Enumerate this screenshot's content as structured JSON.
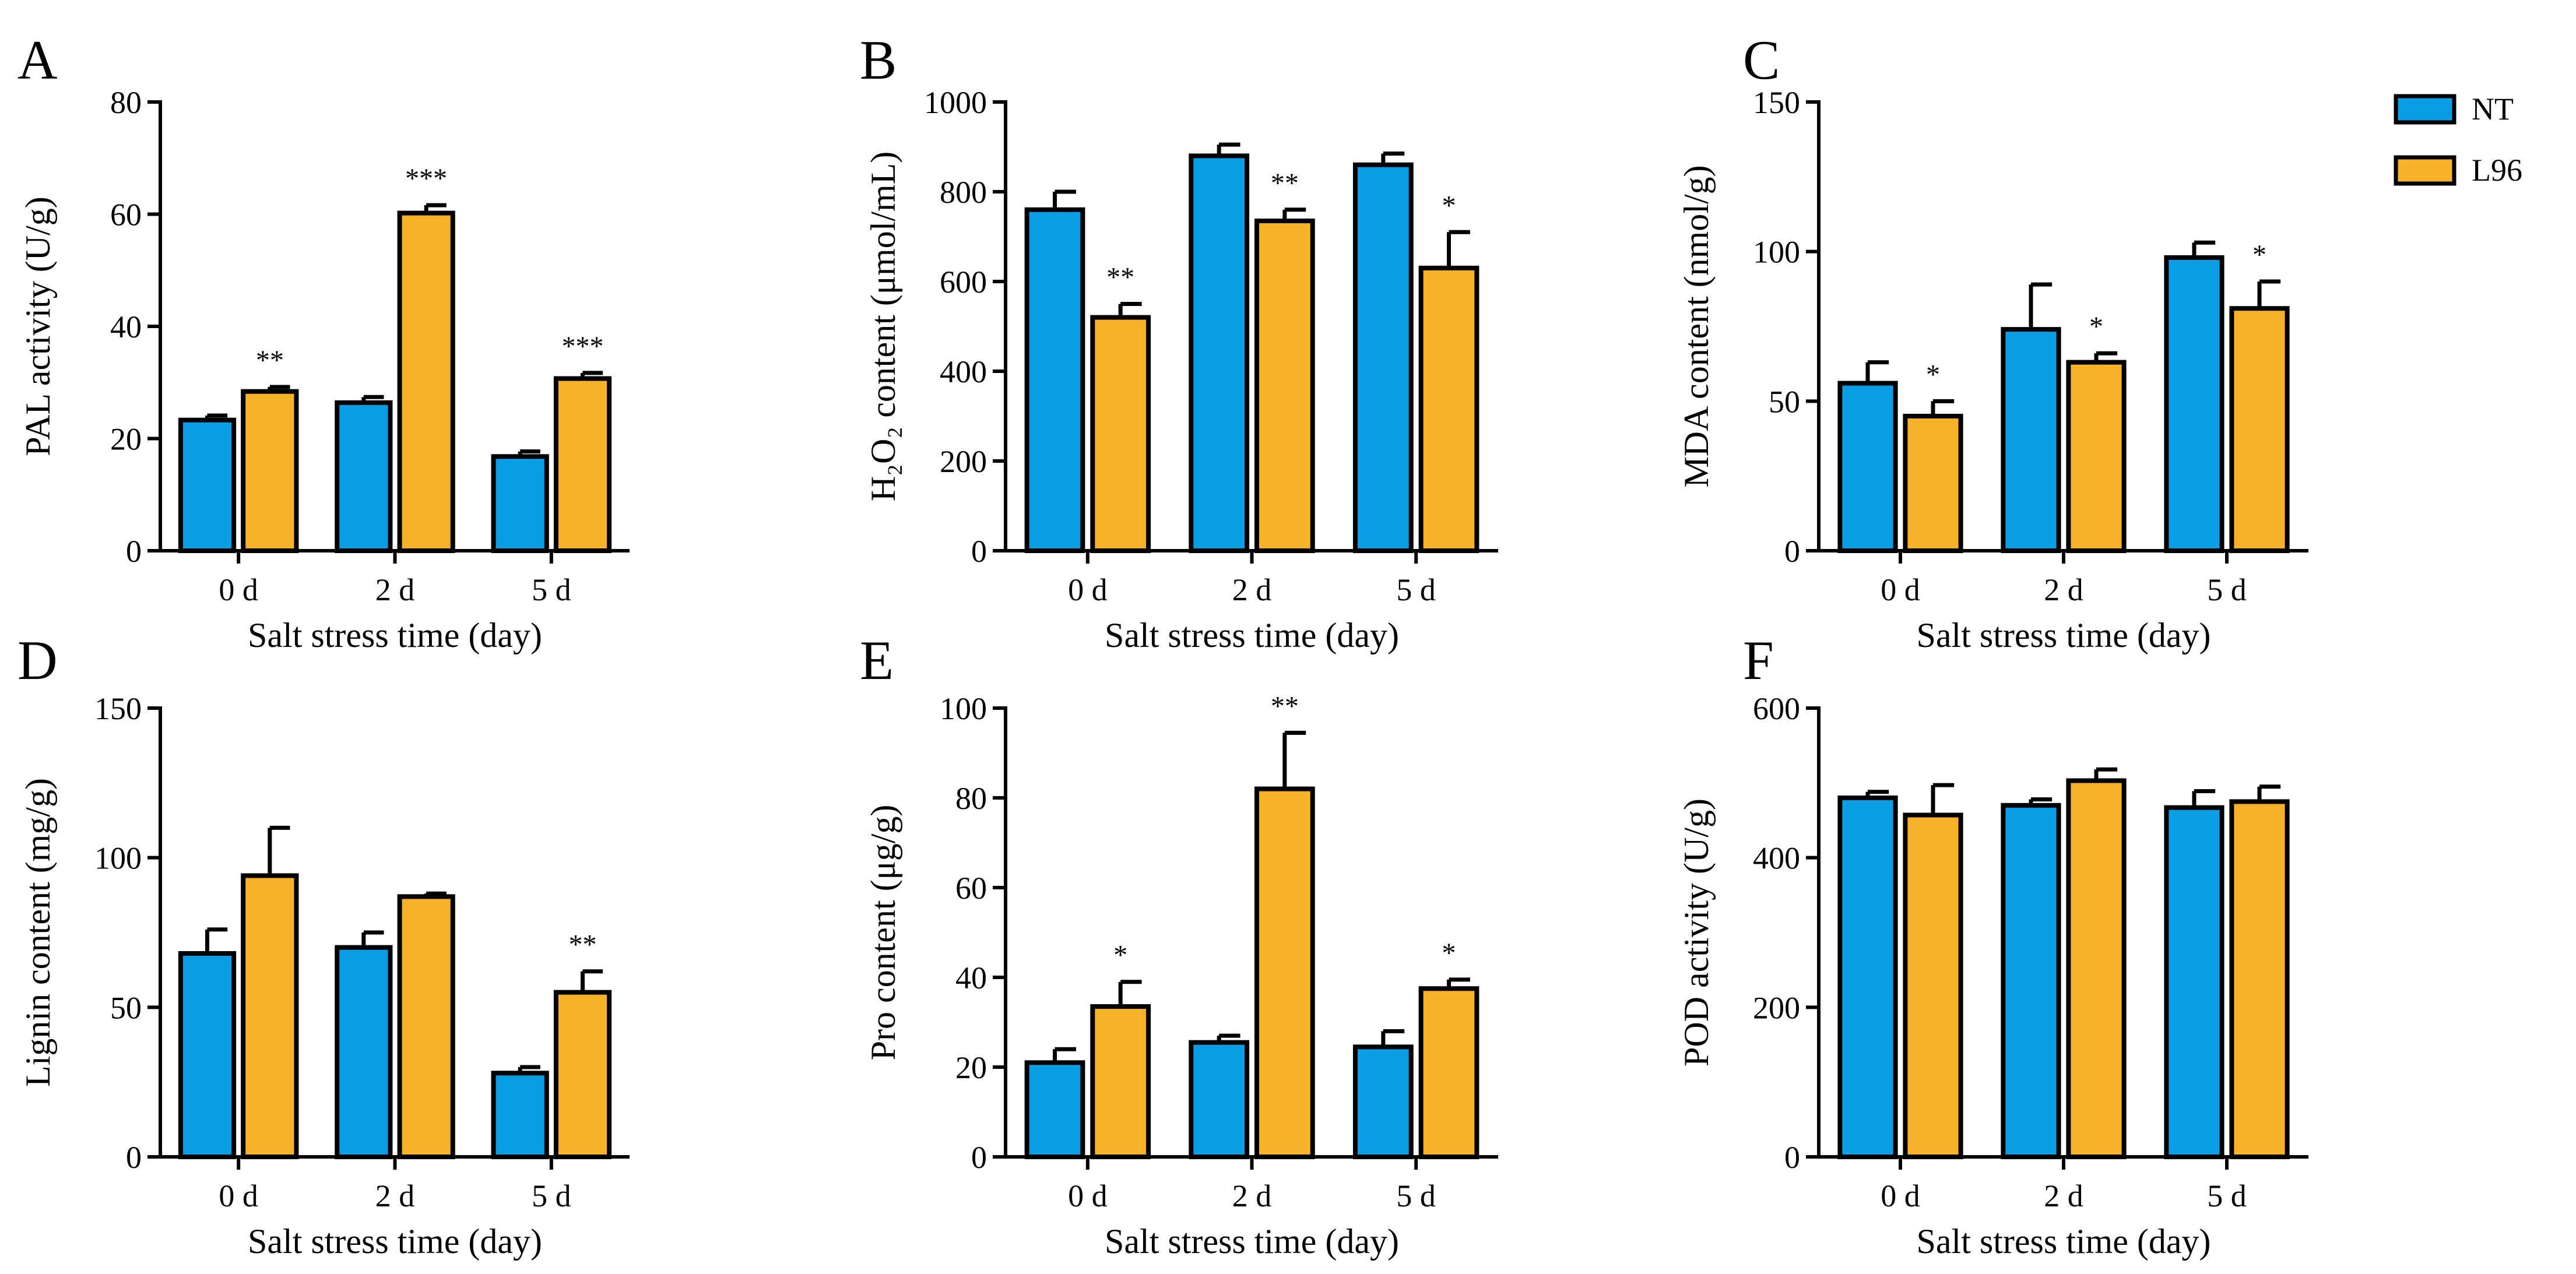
{
  "legend": [
    {
      "name": "NT",
      "color": "#0a9ce5"
    },
    {
      "name": "L96",
      "color": "#f8b229"
    }
  ],
  "colors": {
    "axis": "#000000",
    "bar_outline": "#000000"
  },
  "chart_data": [
    {
      "panel": "A",
      "type": "bar",
      "title": "",
      "xlabel": "Salt stress time (day)",
      "ylabel": "PAL activity (U/g)",
      "categories": [
        "0 d",
        "2 d",
        "5 d"
      ],
      "ylim": [
        0,
        80
      ],
      "yticks": [
        0,
        20,
        40,
        60,
        80
      ],
      "ytick_labels": [
        "0",
        "20",
        "40",
        "60",
        "80"
      ],
      "series": [
        {
          "name": "NT",
          "values": [
            23.3,
            26.4,
            16.8
          ],
          "errors": [
            0.8,
            1.0,
            0.9
          ]
        },
        {
          "name": "L96",
          "values": [
            28.4,
            60.2,
            30.7
          ],
          "errors": [
            0.8,
            1.4,
            1.0
          ]
        }
      ],
      "significance": [
        "**",
        "***",
        "***"
      ]
    },
    {
      "panel": "B",
      "type": "bar",
      "title": "",
      "xlabel": "Salt stress time (day)",
      "ylabel": "H₂O₂ content (μmol/mL)",
      "categories": [
        "0 d",
        "2 d",
        "5 d"
      ],
      "ylim": [
        0,
        1000
      ],
      "yticks": [
        0,
        200,
        400,
        600,
        800,
        1000
      ],
      "ytick_labels": [
        "0",
        "200",
        "400",
        "600",
        "800",
        "1000"
      ],
      "series": [
        {
          "name": "NT",
          "values": [
            760,
            880,
            860
          ],
          "errors": [
            40,
            25,
            25
          ]
        },
        {
          "name": "L96",
          "values": [
            520,
            735,
            630
          ],
          "errors": [
            30,
            25,
            80
          ]
        }
      ],
      "significance": [
        "**",
        "**",
        "*"
      ]
    },
    {
      "panel": "C",
      "type": "bar",
      "title": "",
      "xlabel": "Salt stress time (day)",
      "ylabel": "MDA content (nmol/g)",
      "categories": [
        "0 d",
        "2 d",
        "5 d"
      ],
      "ylim": [
        0,
        150
      ],
      "yticks": [
        0,
        50,
        100,
        150
      ],
      "ytick_labels": [
        "0",
        "50",
        "100",
        "150"
      ],
      "series": [
        {
          "name": "NT",
          "values": [
            56,
            74,
            98
          ],
          "errors": [
            7,
            15,
            5
          ]
        },
        {
          "name": "L96",
          "values": [
            45,
            63,
            81
          ],
          "errors": [
            5,
            3,
            9
          ]
        }
      ],
      "significance": [
        "*",
        "*",
        "*"
      ]
    },
    {
      "panel": "D",
      "type": "bar",
      "title": "",
      "xlabel": "Salt stress time (day)",
      "ylabel": "Lignin content (mg/g)",
      "categories": [
        "0 d",
        "2 d",
        "5 d"
      ],
      "ylim": [
        0,
        150
      ],
      "yticks": [
        0,
        50,
        100,
        150
      ],
      "ytick_labels": [
        "0",
        "50",
        "100",
        "150"
      ],
      "series": [
        {
          "name": "NT",
          "values": [
            68,
            70,
            28
          ],
          "errors": [
            8,
            5,
            2
          ]
        },
        {
          "name": "L96",
          "values": [
            94,
            87,
            55
          ],
          "errors": [
            16,
            1,
            7
          ]
        }
      ],
      "significance": [
        "",
        "",
        "**"
      ]
    },
    {
      "panel": "E",
      "type": "bar",
      "title": "",
      "xlabel": "Salt stress time (day)",
      "ylabel": "Pro content (μg/g)",
      "categories": [
        "0 d",
        "2 d",
        "5 d"
      ],
      "ylim": [
        0,
        100
      ],
      "yticks": [
        0,
        20,
        40,
        60,
        80,
        100
      ],
      "ytick_labels": [
        "0",
        "20",
        "40",
        "60",
        "80",
        "100"
      ],
      "series": [
        {
          "name": "NT",
          "values": [
            21,
            25.5,
            24.5
          ],
          "errors": [
            3,
            1.5,
            3.5
          ]
        },
        {
          "name": "L96",
          "values": [
            33.5,
            82,
            37.5
          ],
          "errors": [
            5.5,
            12.5,
            2
          ]
        }
      ],
      "significance": [
        "*",
        "**",
        "*"
      ]
    },
    {
      "panel": "F",
      "type": "bar",
      "title": "",
      "xlabel": "Salt stress time (day)",
      "ylabel": "POD activity (U/g)",
      "categories": [
        "0 d",
        "2 d",
        "5 d"
      ],
      "ylim": [
        0,
        600
      ],
      "yticks": [
        0,
        200,
        400,
        600
      ],
      "ytick_labels": [
        "0",
        "200",
        "400",
        "600"
      ],
      "series": [
        {
          "name": "NT",
          "values": [
            480,
            470,
            467
          ],
          "errors": [
            8,
            8,
            22
          ]
        },
        {
          "name": "L96",
          "values": [
            457,
            503,
            475
          ],
          "errors": [
            40,
            15,
            20
          ]
        }
      ],
      "significance": [
        "",
        "",
        ""
      ]
    }
  ]
}
